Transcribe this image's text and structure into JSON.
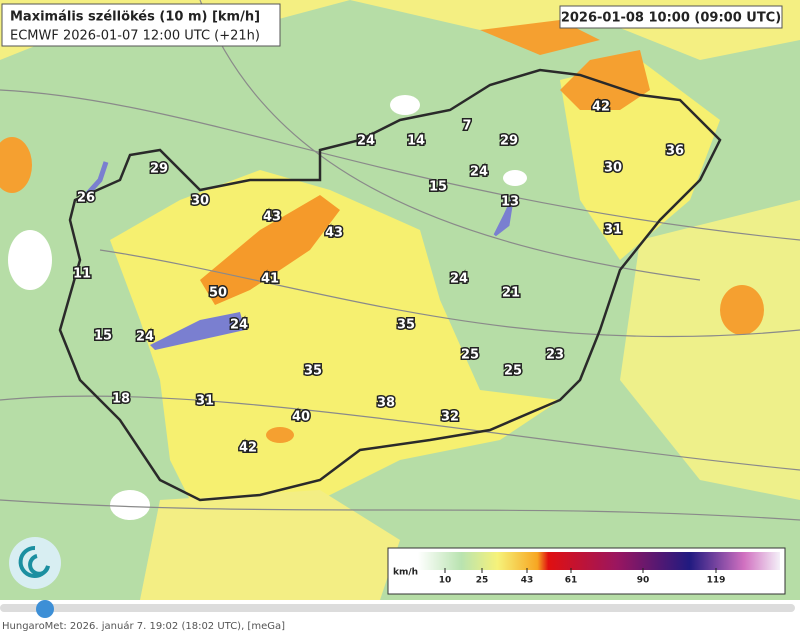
{
  "header": {
    "title": "Maximális széllökés (10 m) [km/h]",
    "subtitle": "ECMWF 2026-01-07 12:00 UTC (+21h)",
    "timestamp": "2026-01-08 10:00 (09:00 UTC)"
  },
  "stations": [
    24,
    14,
    7,
    29,
    42,
    30,
    36,
    29,
    30,
    26,
    15,
    24,
    13,
    43,
    43,
    31,
    11,
    41,
    50,
    24,
    21,
    15,
    24,
    24,
    35,
    25,
    23,
    25,
    35,
    18,
    31,
    38,
    32,
    40,
    42
  ],
  "legend": {
    "unit": "km/h",
    "ticks": [
      10,
      25,
      43,
      61,
      90,
      119
    ]
  },
  "footer": "HungaroMet: 2026. január 7. 19:02 (18:02 UTC), [meGa]"
}
